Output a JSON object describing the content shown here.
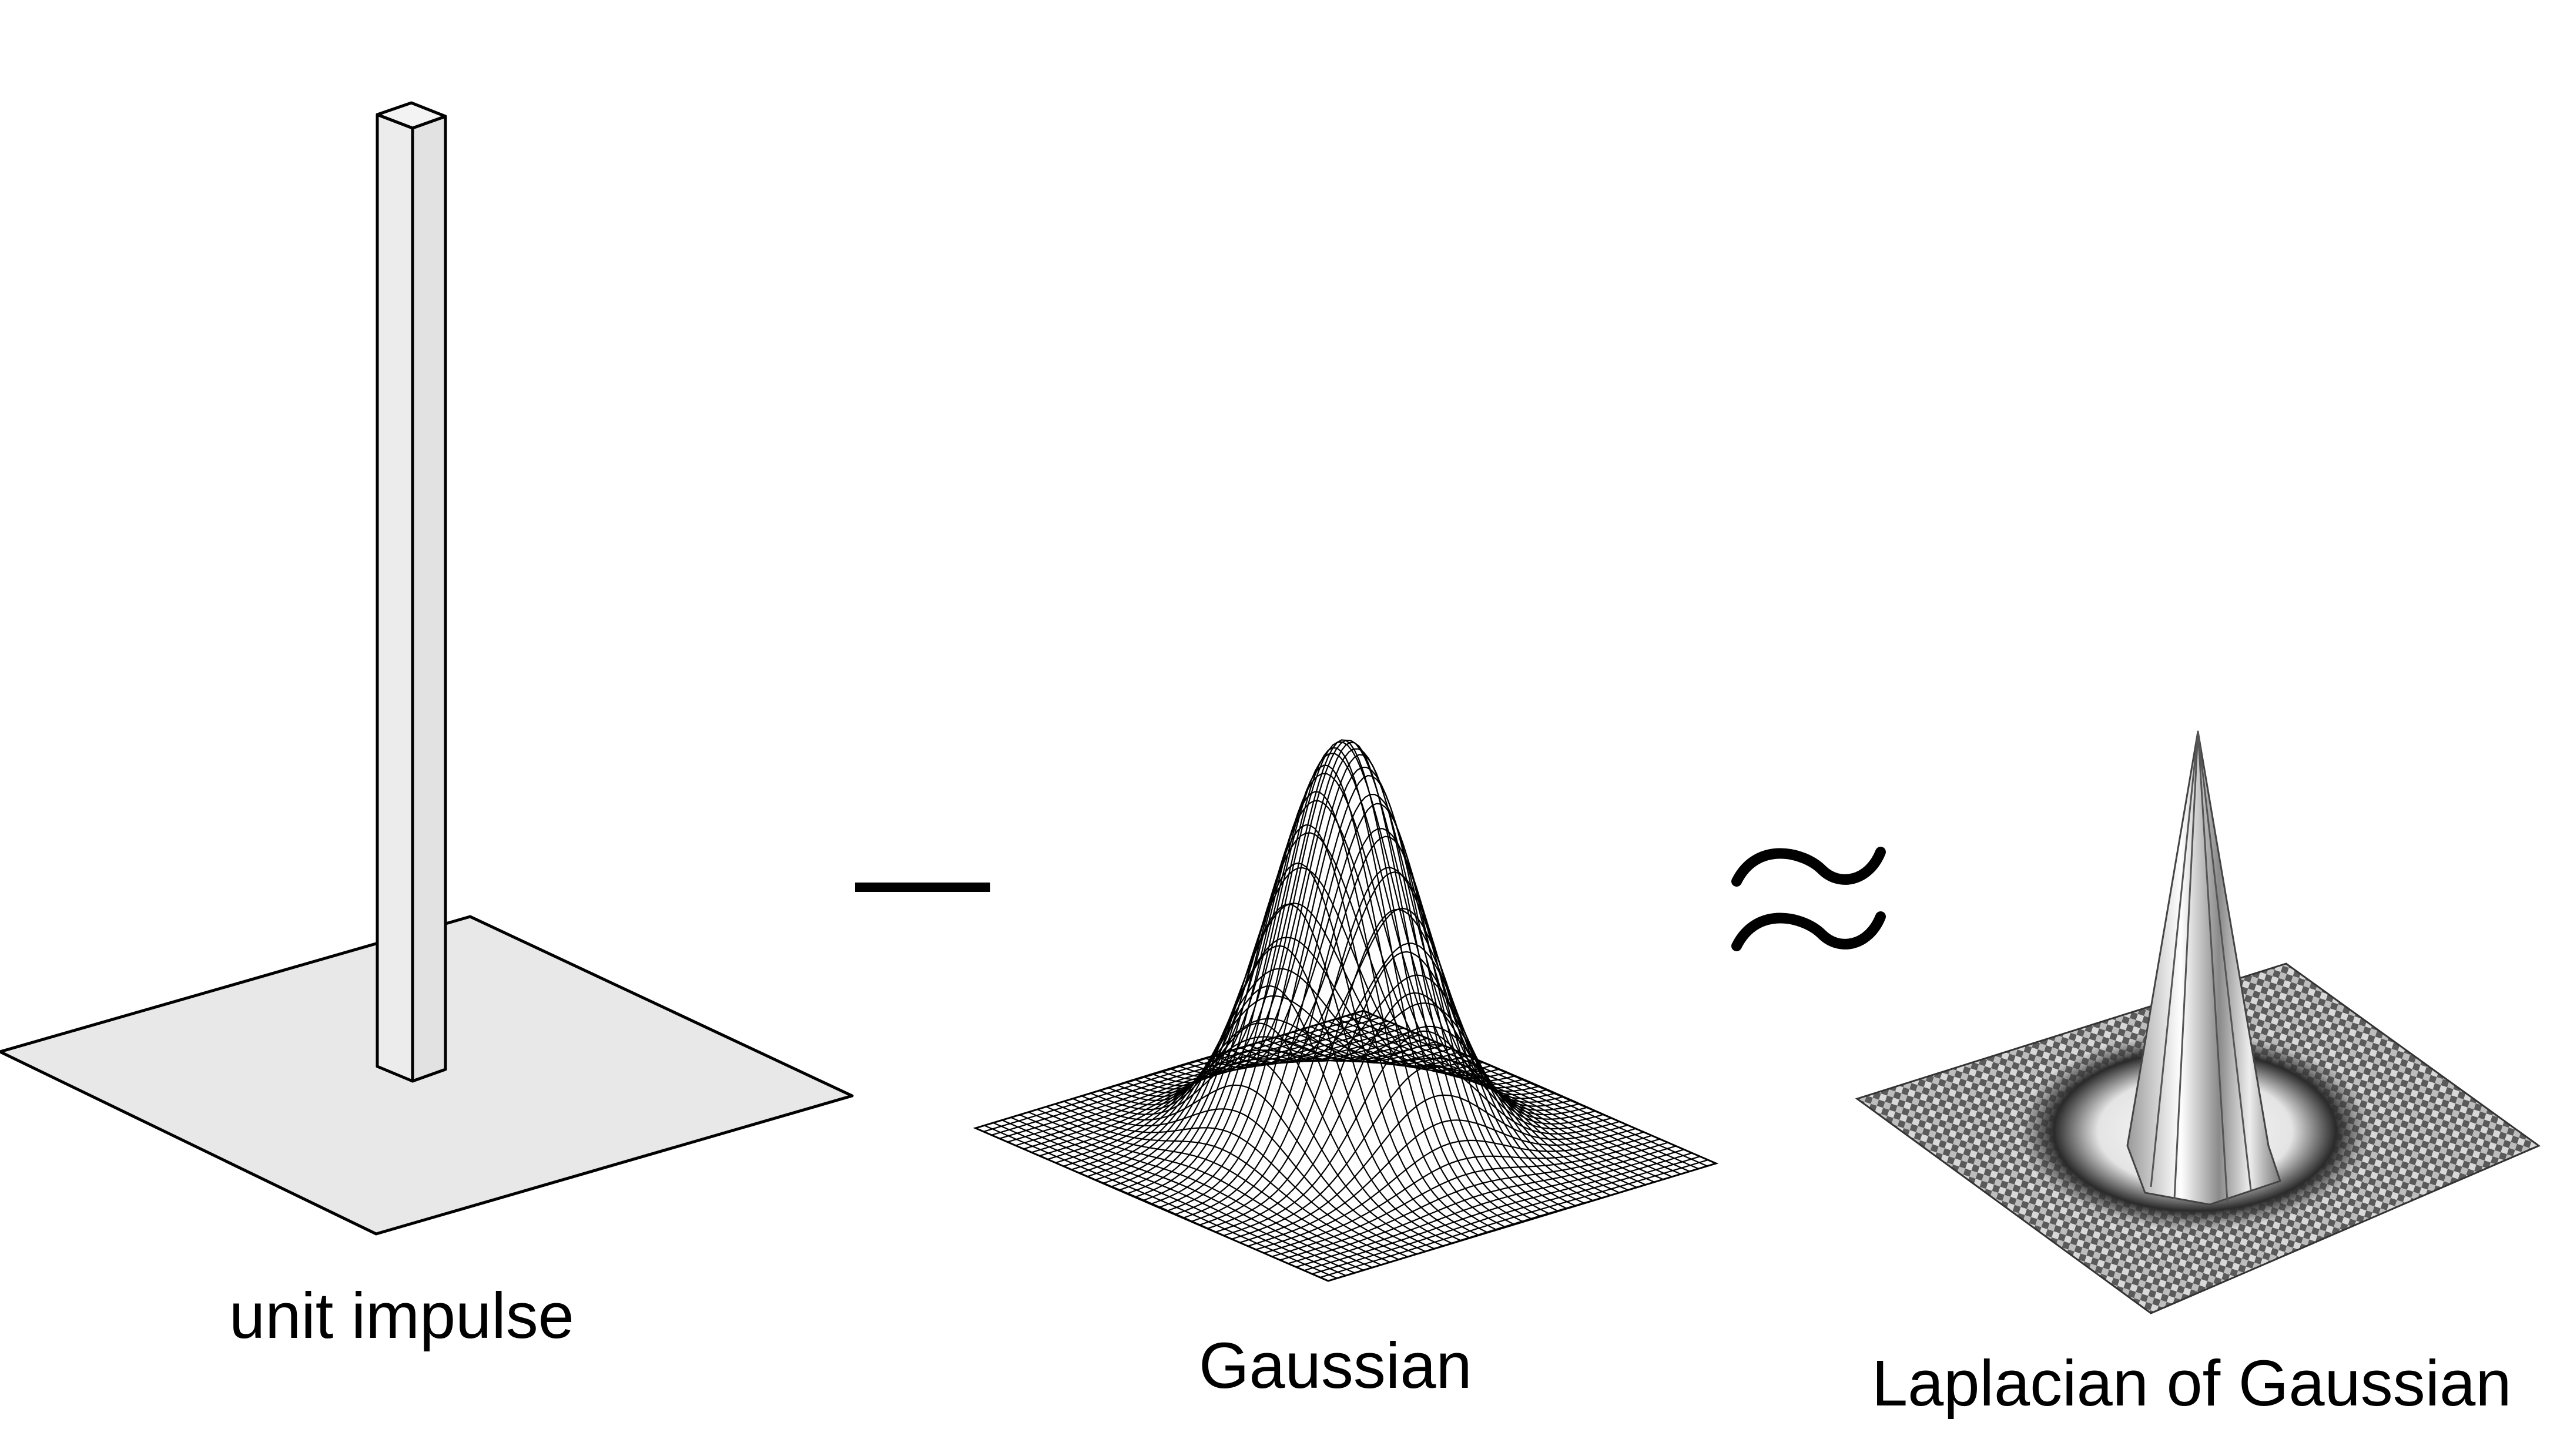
{
  "captions": {
    "impulse": "unit impulse",
    "gaussian": "Gaussian",
    "log": "Laplacian of Gaussian"
  },
  "operators": {
    "minus": "minus",
    "approx": "approximately-equal"
  },
  "colors": {
    "plane_fill": "#e8e8e8",
    "stroke": "#000000",
    "log_dark": "#6e6e6e",
    "log_light": "#f0f0f0"
  }
}
